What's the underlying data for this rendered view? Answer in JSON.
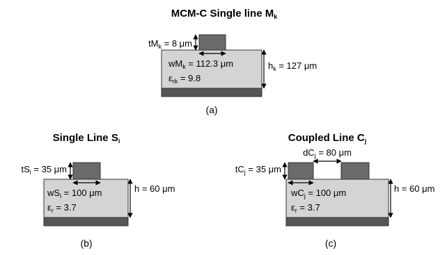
{
  "panel_a": {
    "title": "MCM-C Single line M",
    "title_sub": "k",
    "t_label": "tM",
    "t_sub": "k",
    "t_value": " = 8 μm",
    "w_label": "wM",
    "w_sub": "k",
    "w_value": " = 112.3 μm",
    "eps_label": "ε",
    "eps_sub": "rk",
    "eps_value": " = 9.8",
    "h_label": "h",
    "h_sub": "k",
    "h_value": " = 127 μm",
    "caption": "(a)"
  },
  "panel_b": {
    "title": "Single Line S",
    "title_sub": "i",
    "t_label": "tS",
    "t_sub": "i",
    "t_value": " = 35 μm",
    "w_label": "wS",
    "w_sub": "i",
    "w_value": " = 100 μm",
    "eps_label": "ε",
    "eps_sub": "r",
    "eps_value": " = 3.7",
    "h_label": "h = 60 μm",
    "caption": "(b)"
  },
  "panel_c": {
    "title": "Coupled Line C",
    "title_sub": "j",
    "d_label": "dC",
    "d_sub": "j",
    "d_value": " = 80 μm",
    "t_label": "tC",
    "t_sub": "j",
    "t_value": " = 35 μm",
    "w_label": "wC",
    "w_sub": "j",
    "w_value": " = 100 μm",
    "eps_label": "ε",
    "eps_sub": "r",
    "eps_value": " = 3.7",
    "h_label": "h = 60 μm",
    "caption": "(c)"
  },
  "colors": {
    "substrate": "#d4d4d4",
    "conductor": "#6a6a6a",
    "ground": "#555555"
  }
}
